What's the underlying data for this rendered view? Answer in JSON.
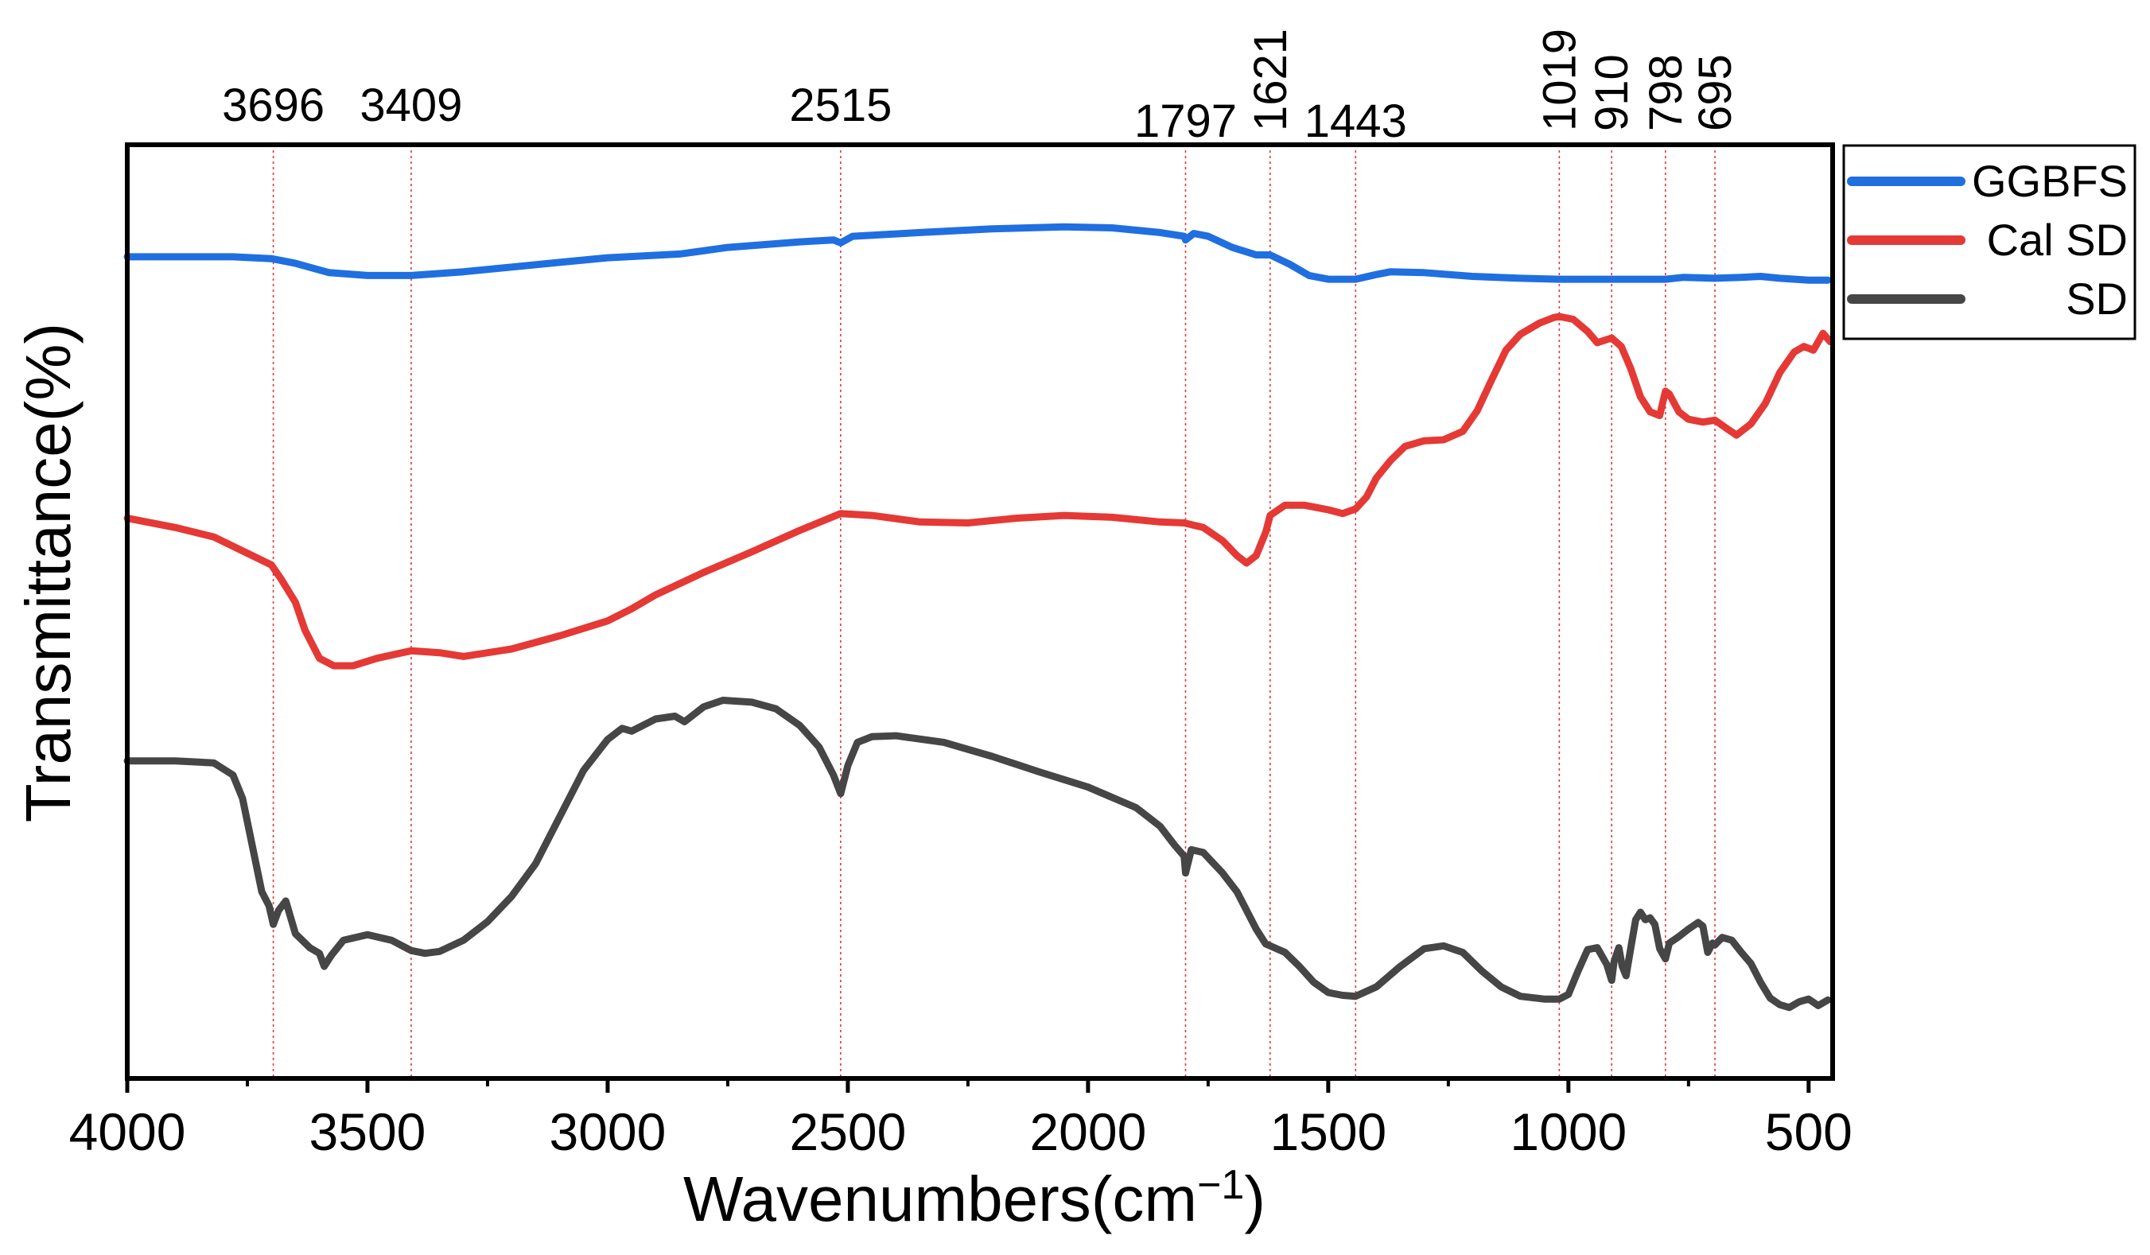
{
  "chart_data": {
    "type": "line",
    "title": "",
    "xlabel": "Wavenumbers(cm",
    "xlabel_sup": "−1",
    "xlabel_close": ")",
    "ylabel": "Transmittance(%)",
    "xlim": [
      4000,
      450
    ],
    "ylim": [
      0,
      100
    ],
    "x_ticks": [
      4000,
      3500,
      3000,
      2500,
      2000,
      1500,
      1000,
      500
    ],
    "x_tick_labels": [
      "4000",
      "3500",
      "3000",
      "2500",
      "2000",
      "1500",
      "1000",
      "500"
    ],
    "grid": false,
    "legend_position": "top-right, outside plot",
    "peak_markers": [
      {
        "x": 3696,
        "label": "3696",
        "rotated": false
      },
      {
        "x": 3409,
        "label": "3409",
        "rotated": false
      },
      {
        "x": 2515,
        "label": "2515",
        "rotated": false
      },
      {
        "x": 1797,
        "label": "1797",
        "rotated": false
      },
      {
        "x": 1621,
        "label": "1621",
        "rotated": true
      },
      {
        "x": 1443,
        "label": "1443",
        "rotated": false
      },
      {
        "x": 1019,
        "label": "1019",
        "rotated": true
      },
      {
        "x": 910,
        "label": "910",
        "rotated": true
      },
      {
        "x": 798,
        "label": "798",
        "rotated": true
      },
      {
        "x": 695,
        "label": "695",
        "rotated": true
      }
    ],
    "series": [
      {
        "name": "GGBFS",
        "color": "#1f6fe0",
        "points": [
          [
            4000,
            88
          ],
          [
            3900,
            88
          ],
          [
            3780,
            88
          ],
          [
            3700,
            87.8
          ],
          [
            3650,
            87.3
          ],
          [
            3580,
            86.3
          ],
          [
            3500,
            86
          ],
          [
            3409,
            86
          ],
          [
            3300,
            86.4
          ],
          [
            3200,
            86.9
          ],
          [
            3100,
            87.4
          ],
          [
            3000,
            87.9
          ],
          [
            2850,
            88.3
          ],
          [
            2750,
            89
          ],
          [
            2600,
            89.6
          ],
          [
            2530,
            89.8
          ],
          [
            2515,
            89.5
          ],
          [
            2490,
            90.2
          ],
          [
            2350,
            90.6
          ],
          [
            2200,
            91
          ],
          [
            2050,
            91.2
          ],
          [
            1950,
            91.1
          ],
          [
            1850,
            90.6
          ],
          [
            1800,
            90.2
          ],
          [
            1797,
            89.8
          ],
          [
            1780,
            90.5
          ],
          [
            1750,
            90.2
          ],
          [
            1700,
            89
          ],
          [
            1650,
            88.2
          ],
          [
            1621,
            88.2
          ],
          [
            1580,
            87.2
          ],
          [
            1540,
            86
          ],
          [
            1500,
            85.6
          ],
          [
            1443,
            85.6
          ],
          [
            1400,
            86.1
          ],
          [
            1370,
            86.4
          ],
          [
            1300,
            86.3
          ],
          [
            1200,
            85.9
          ],
          [
            1100,
            85.7
          ],
          [
            1019,
            85.6
          ],
          [
            950,
            85.6
          ],
          [
            910,
            85.6
          ],
          [
            850,
            85.6
          ],
          [
            798,
            85.6
          ],
          [
            760,
            85.8
          ],
          [
            695,
            85.7
          ],
          [
            640,
            85.8
          ],
          [
            600,
            85.9
          ],
          [
            560,
            85.7
          ],
          [
            500,
            85.5
          ],
          [
            460,
            85.5
          ]
        ]
      },
      {
        "name": "Cal SD",
        "color": "#e53935",
        "points": [
          [
            4000,
            60
          ],
          [
            3900,
            59
          ],
          [
            3820,
            58
          ],
          [
            3760,
            56.5
          ],
          [
            3700,
            55
          ],
          [
            3680,
            53.5
          ],
          [
            3650,
            51
          ],
          [
            3630,
            48
          ],
          [
            3600,
            45
          ],
          [
            3570,
            44.2
          ],
          [
            3530,
            44.2
          ],
          [
            3480,
            45
          ],
          [
            3409,
            45.8
          ],
          [
            3350,
            45.6
          ],
          [
            3300,
            45.2
          ],
          [
            3200,
            46
          ],
          [
            3100,
            47.4
          ],
          [
            3000,
            49
          ],
          [
            2950,
            50.3
          ],
          [
            2900,
            51.8
          ],
          [
            2800,
            54.2
          ],
          [
            2700,
            56.4
          ],
          [
            2600,
            58.7
          ],
          [
            2515,
            60.5
          ],
          [
            2450,
            60.3
          ],
          [
            2350,
            59.6
          ],
          [
            2250,
            59.5
          ],
          [
            2150,
            60
          ],
          [
            2050,
            60.3
          ],
          [
            1950,
            60.1
          ],
          [
            1850,
            59.6
          ],
          [
            1800,
            59.5
          ],
          [
            1760,
            59
          ],
          [
            1720,
            57.6
          ],
          [
            1690,
            56
          ],
          [
            1670,
            55.2
          ],
          [
            1650,
            56
          ],
          [
            1630,
            58.5
          ],
          [
            1621,
            60.3
          ],
          [
            1590,
            61.4
          ],
          [
            1550,
            61.4
          ],
          [
            1500,
            60.9
          ],
          [
            1470,
            60.5
          ],
          [
            1443,
            61
          ],
          [
            1420,
            62.3
          ],
          [
            1400,
            64.3
          ],
          [
            1370,
            66.2
          ],
          [
            1340,
            67.7
          ],
          [
            1300,
            68.3
          ],
          [
            1260,
            68.4
          ],
          [
            1220,
            69.3
          ],
          [
            1190,
            71.5
          ],
          [
            1160,
            74.8
          ],
          [
            1130,
            78
          ],
          [
            1100,
            79.7
          ],
          [
            1060,
            80.9
          ],
          [
            1030,
            81.5
          ],
          [
            1019,
            81.6
          ],
          [
            990,
            81.3
          ],
          [
            960,
            80
          ],
          [
            940,
            78.8
          ],
          [
            910,
            79.3
          ],
          [
            890,
            78.4
          ],
          [
            870,
            76
          ],
          [
            850,
            73
          ],
          [
            830,
            71.4
          ],
          [
            810,
            71
          ],
          [
            798,
            73.6
          ],
          [
            790,
            73.3
          ],
          [
            770,
            71.4
          ],
          [
            750,
            70.6
          ],
          [
            720,
            70.3
          ],
          [
            695,
            70.5
          ],
          [
            670,
            69.6
          ],
          [
            650,
            68.9
          ],
          [
            620,
            70.1
          ],
          [
            590,
            72.3
          ],
          [
            560,
            75.6
          ],
          [
            530,
            77.8
          ],
          [
            510,
            78.4
          ],
          [
            490,
            78
          ],
          [
            470,
            79.8
          ],
          [
            455,
            78.9
          ]
        ]
      },
      {
        "name": "SD",
        "color": "#464646",
        "points": [
          [
            4000,
            34
          ],
          [
            3900,
            34
          ],
          [
            3820,
            33.8
          ],
          [
            3780,
            32.5
          ],
          [
            3760,
            30
          ],
          [
            3740,
            25
          ],
          [
            3720,
            20
          ],
          [
            3705,
            18.5
          ],
          [
            3696,
            16.5
          ],
          [
            3685,
            18
          ],
          [
            3670,
            19
          ],
          [
            3650,
            15.5
          ],
          [
            3620,
            14
          ],
          [
            3600,
            13.4
          ],
          [
            3590,
            12
          ],
          [
            3575,
            13.2
          ],
          [
            3550,
            14.8
          ],
          [
            3500,
            15.4
          ],
          [
            3450,
            14.8
          ],
          [
            3409,
            13.7
          ],
          [
            3380,
            13.4
          ],
          [
            3350,
            13.6
          ],
          [
            3300,
            14.8
          ],
          [
            3250,
            16.8
          ],
          [
            3200,
            19.5
          ],
          [
            3150,
            23
          ],
          [
            3100,
            28
          ],
          [
            3050,
            33
          ],
          [
            3000,
            36.3
          ],
          [
            2970,
            37.5
          ],
          [
            2950,
            37.2
          ],
          [
            2900,
            38.5
          ],
          [
            2860,
            38.8
          ],
          [
            2840,
            38.2
          ],
          [
            2800,
            39.8
          ],
          [
            2760,
            40.5
          ],
          [
            2700,
            40.3
          ],
          [
            2650,
            39.6
          ],
          [
            2600,
            37.8
          ],
          [
            2560,
            35.5
          ],
          [
            2530,
            32.5
          ],
          [
            2515,
            30.5
          ],
          [
            2500,
            33.5
          ],
          [
            2480,
            36
          ],
          [
            2450,
            36.6
          ],
          [
            2400,
            36.7
          ],
          [
            2300,
            36
          ],
          [
            2200,
            34.5
          ],
          [
            2100,
            32.8
          ],
          [
            2000,
            31.2
          ],
          [
            1900,
            29
          ],
          [
            1850,
            27
          ],
          [
            1820,
            25
          ],
          [
            1800,
            23.8
          ],
          [
            1797,
            22
          ],
          [
            1785,
            24.5
          ],
          [
            1760,
            24.2
          ],
          [
            1720,
            22
          ],
          [
            1690,
            20
          ],
          [
            1670,
            18
          ],
          [
            1650,
            16
          ],
          [
            1630,
            14.4
          ],
          [
            1621,
            14.2
          ],
          [
            1590,
            13.5
          ],
          [
            1560,
            12
          ],
          [
            1530,
            10.3
          ],
          [
            1500,
            9.2
          ],
          [
            1470,
            8.9
          ],
          [
            1443,
            8.8
          ],
          [
            1400,
            9.8
          ],
          [
            1350,
            12
          ],
          [
            1300,
            13.9
          ],
          [
            1260,
            14.2
          ],
          [
            1220,
            13.5
          ],
          [
            1180,
            11.5
          ],
          [
            1140,
            9.8
          ],
          [
            1100,
            8.8
          ],
          [
            1050,
            8.5
          ],
          [
            1019,
            8.5
          ],
          [
            1000,
            9
          ],
          [
            980,
            11.5
          ],
          [
            960,
            13.8
          ],
          [
            940,
            14
          ],
          [
            920,
            12.2
          ],
          [
            910,
            10.5
          ],
          [
            905,
            12.5
          ],
          [
            895,
            14
          ],
          [
            888,
            12
          ],
          [
            880,
            11
          ],
          [
            870,
            14
          ],
          [
            860,
            17
          ],
          [
            850,
            17.8
          ],
          [
            840,
            17
          ],
          [
            830,
            17.2
          ],
          [
            820,
            16.5
          ],
          [
            810,
            13.9
          ],
          [
            798,
            12.8
          ],
          [
            790,
            14.5
          ],
          [
            770,
            15.2
          ],
          [
            750,
            16
          ],
          [
            730,
            16.7
          ],
          [
            720,
            16.3
          ],
          [
            710,
            13.5
          ],
          [
            700,
            14.5
          ],
          [
            695,
            14.3
          ],
          [
            680,
            15.1
          ],
          [
            660,
            14.8
          ],
          [
            640,
            13.5
          ],
          [
            620,
            12.3
          ],
          [
            600,
            10.3
          ],
          [
            580,
            8.6
          ],
          [
            560,
            7.9
          ],
          [
            540,
            7.6
          ],
          [
            520,
            8.2
          ],
          [
            500,
            8.5
          ],
          [
            480,
            7.8
          ],
          [
            460,
            8.4
          ]
        ]
      }
    ]
  }
}
